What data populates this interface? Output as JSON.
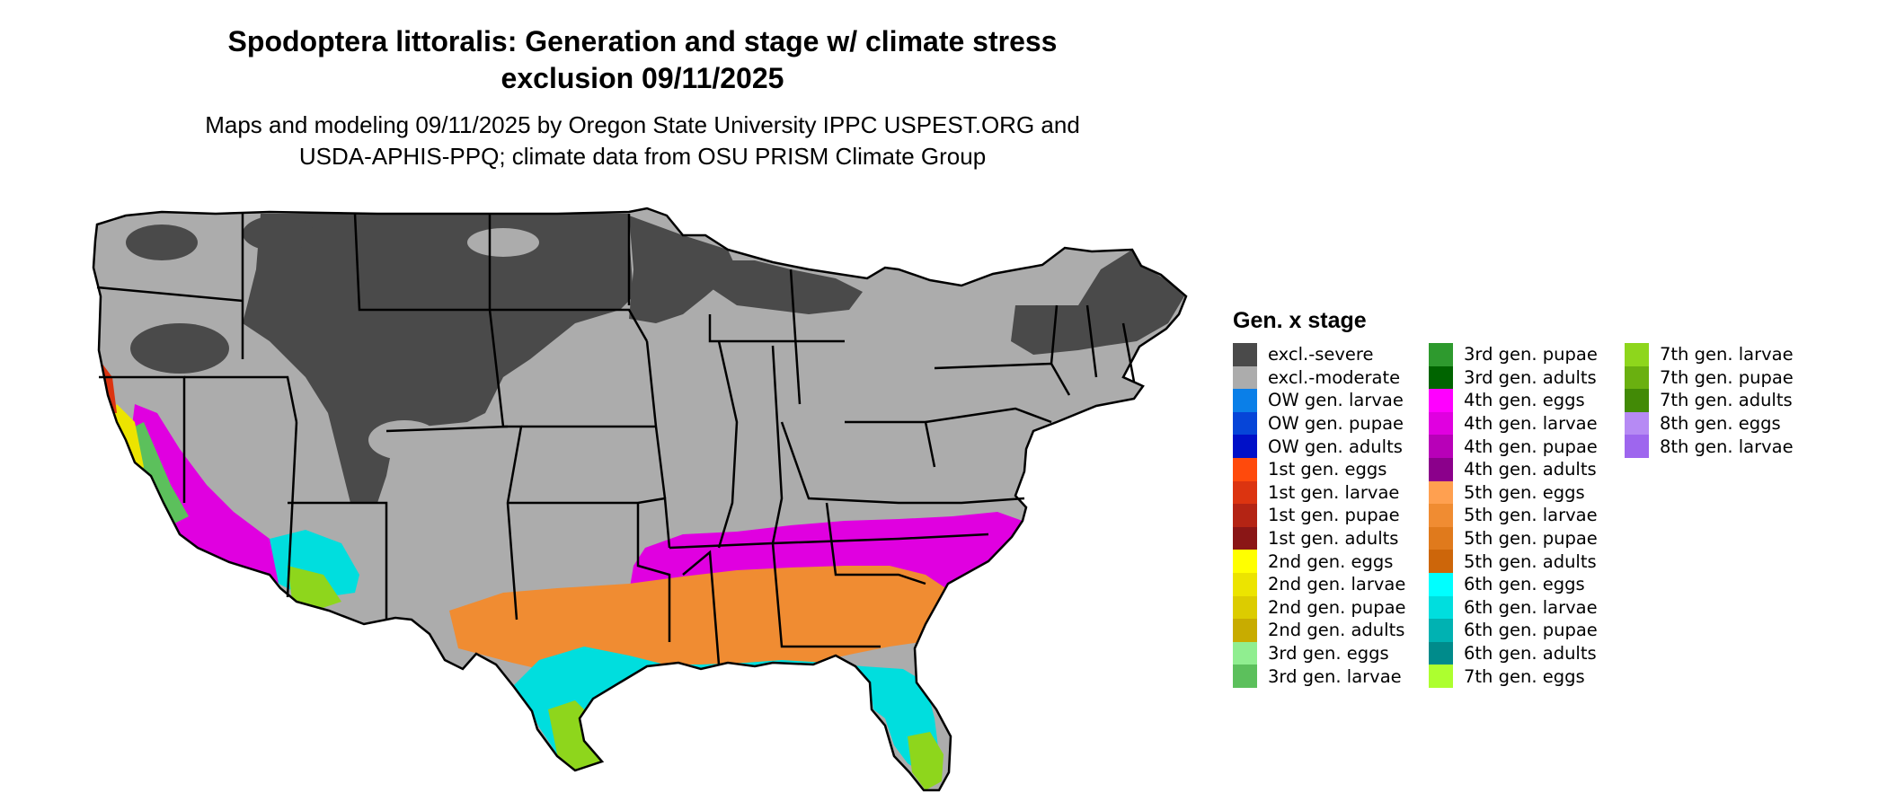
{
  "title_line1": "Spodoptera littoralis: Generation and stage w/ climate stress",
  "title_line2": "exclusion 09/11/2025",
  "subtitle_line1": "Maps and modeling 09/11/2025 by Oregon State University IPPC USPEST.ORG and",
  "subtitle_line2": "USDA-APHIS-PPQ; climate data from OSU PRISM Climate Group",
  "legend": {
    "title": "Gen. x stage",
    "columns": [
      [
        {
          "label": "excl.-severe",
          "color": "#4a4a4a"
        },
        {
          "label": "excl.-moderate",
          "color": "#acacac"
        },
        {
          "label": "OW gen. larvae",
          "color": "#0a7fe8"
        },
        {
          "label": "OW gen. pupae",
          "color": "#0645d8"
        },
        {
          "label": "OW gen. adults",
          "color": "#0010c8"
        },
        {
          "label": "1st gen. eggs",
          "color": "#ff4a0c"
        },
        {
          "label": "1st gen. larvae",
          "color": "#dc3410"
        },
        {
          "label": "1st gen. pupae",
          "color": "#b42414"
        },
        {
          "label": "1st gen. adults",
          "color": "#8a1616"
        },
        {
          "label": "2nd gen. eggs",
          "color": "#ffff00"
        },
        {
          "label": "2nd gen. larvae",
          "color": "#ece400"
        },
        {
          "label": "2nd gen. pupae",
          "color": "#dccc00"
        },
        {
          "label": "2nd gen. adults",
          "color": "#c8ac00"
        },
        {
          "label": "3rd gen. eggs",
          "color": "#90ee90"
        },
        {
          "label": "3rd gen. larvae",
          "color": "#5cc05c"
        }
      ],
      [
        {
          "label": "3rd gen. pupae",
          "color": "#2e9a2e"
        },
        {
          "label": "3rd gen. adults",
          "color": "#006400"
        },
        {
          "label": "4th gen. eggs",
          "color": "#ff00ff"
        },
        {
          "label": "4th gen. larvae",
          "color": "#e000e0"
        },
        {
          "label": "4th gen. pupae",
          "color": "#b800b8"
        },
        {
          "label": "4th gen. adults",
          "color": "#8b008b"
        },
        {
          "label": "5th gen. eggs",
          "color": "#ffa050"
        },
        {
          "label": "5th gen. larvae",
          "color": "#f08c32"
        },
        {
          "label": "5th gen. pupae",
          "color": "#e07a1c"
        },
        {
          "label": "5th gen. adults",
          "color": "#cd660a"
        },
        {
          "label": "6th gen. eggs",
          "color": "#00ffff"
        },
        {
          "label": "6th gen. larvae",
          "color": "#00dede"
        },
        {
          "label": "6th gen. pupae",
          "color": "#00b2b2"
        },
        {
          "label": "6th gen. adults",
          "color": "#008b8b"
        },
        {
          "label": "7th gen. eggs",
          "color": "#adff2f"
        }
      ],
      [
        {
          "label": "7th gen. larvae",
          "color": "#8ed61c"
        },
        {
          "label": "7th gen. pupae",
          "color": "#6ab010"
        },
        {
          "label": "7th gen. adults",
          "color": "#428a06"
        },
        {
          "label": "8th gen. eggs",
          "color": "#b68af4"
        },
        {
          "label": "8th gen. larvae",
          "color": "#9e66ee"
        }
      ]
    ]
  }
}
